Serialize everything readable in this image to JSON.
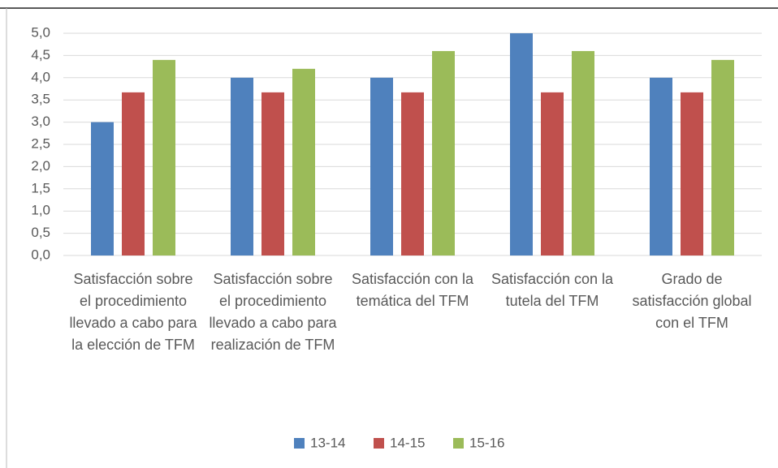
{
  "chart_data": {
    "type": "bar",
    "categories": [
      "Satisfacción sobre el procedimiento llevado a cabo para la elección de TFM",
      "Satisfacción sobre el procedimiento llevado a cabo para realización de TFM",
      "Satisfacción con la temática del TFM",
      "Satisfacción con la tutela del TFM",
      "Grado de satisfacción global con el TFM"
    ],
    "series": [
      {
        "name": "13-14",
        "color": "#4f81bd",
        "values": [
          3.0,
          4.0,
          4.0,
          5.0,
          4.0
        ]
      },
      {
        "name": "14-15",
        "color": "#c0504d",
        "values": [
          3.67,
          3.67,
          3.67,
          3.67,
          3.67
        ]
      },
      {
        "name": "15-16",
        "color": "#9bbb59",
        "values": [
          4.4,
          4.2,
          4.6,
          4.6,
          4.4
        ]
      }
    ],
    "ylim": [
      0,
      5
    ],
    "yticks": [
      {
        "value": 0,
        "label": "0,0"
      },
      {
        "value": 0.5,
        "label": "0,5"
      },
      {
        "value": 1,
        "label": "1,0"
      },
      {
        "value": 1.5,
        "label": "1,5"
      },
      {
        "value": 2,
        "label": "2,0"
      },
      {
        "value": 2.5,
        "label": "2,5"
      },
      {
        "value": 3,
        "label": "3,0"
      },
      {
        "value": 3.5,
        "label": "3,5"
      },
      {
        "value": 4,
        "label": "4,0"
      },
      {
        "value": 4.5,
        "label": "4,5"
      },
      {
        "value": 5,
        "label": "5,0"
      }
    ],
    "grid": true,
    "legend": "bottom"
  }
}
